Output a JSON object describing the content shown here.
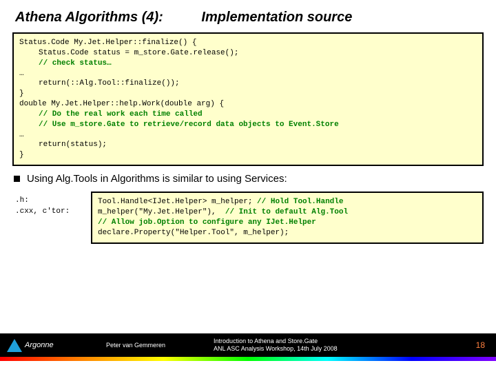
{
  "title": {
    "part1": "Athena Algorithms (4):",
    "part2": "Implementation source"
  },
  "codebox1": {
    "l1": "Status.Code My.Jet.Helper::finalize() {",
    "l2": "Status.Code status = m_store.Gate.release();",
    "l3": "// check status…",
    "l4": "…",
    "l5": "return(::Alg.Tool::finalize());",
    "l6": "}",
    "l7": "double My.Jet.Helper::help.Work(double arg) {",
    "l8": "// Do the real work each time called",
    "l9": "// Use m_store.Gate to retrieve/record data objects to Event.Store",
    "l10": "…",
    "l11": "return(status);",
    "l12": "}"
  },
  "bullet": "Using Alg.Tools in Algorithms is similar to using Services:",
  "row2": {
    "label1": ".h:",
    "label2": ".cxx, c'tor:",
    "c1a": "Tool.Handle<IJet.Helper> m_helper; ",
    "c1b": "// Hold Tool.Handle",
    "c2a": "m_helper(\"My.Jet.Helper\"),  ",
    "c2b": "// Init to default Alg.Tool",
    "c3": "// Allow job.Option to configure any IJet.Helper",
    "c4": "declare.Property(\"Helper.Tool\", m_helper);"
  },
  "footer": {
    "logo_text": "Argonne",
    "author": "Peter van Gemmeren",
    "center_l1": "Introduction to Athena and Store.Gate",
    "center_l2": "ANL ASC Analysis Workshop, 14th July 2008",
    "pagenum": "18"
  },
  "colors": {
    "codebox_bg": "#ffffcc",
    "comment": "#008000",
    "pagenum": "#ff8040",
    "logo_tri": "#1fa0db"
  }
}
